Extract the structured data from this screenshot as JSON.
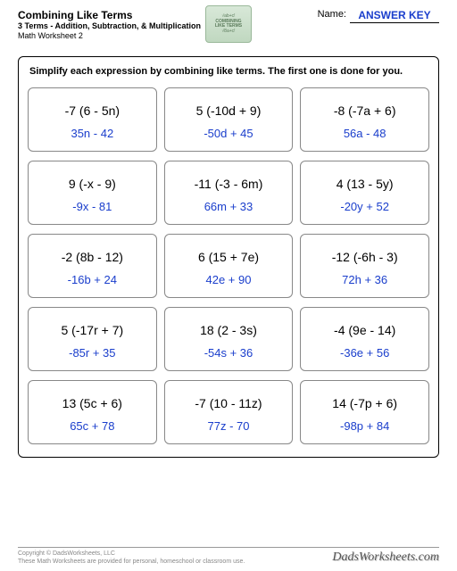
{
  "header": {
    "title": "Combining Like Terms",
    "subtitle": "3 Terms - Addition, Subtraction, & Multiplication",
    "worksheet_num": "Math Worksheet 2",
    "name_label": "Name:",
    "name_value": "ANSWER KEY",
    "logo_line1": "COMBINING",
    "logo_line2": "LIKE TERMS"
  },
  "instructions": "Simplify each expression by combining like terms.  The first one is done for you.",
  "problems": [
    {
      "expr": "-7 (6 - 5n)",
      "answer": "35n - 42"
    },
    {
      "expr": "5 (-10d + 9)",
      "answer": "-50d + 45"
    },
    {
      "expr": "-8 (-7a + 6)",
      "answer": "56a - 48"
    },
    {
      "expr": "9 (-x - 9)",
      "answer": "-9x - 81"
    },
    {
      "expr": "-11 (-3 - 6m)",
      "answer": "66m + 33"
    },
    {
      "expr": "4 (13 - 5y)",
      "answer": "-20y + 52"
    },
    {
      "expr": "-2 (8b - 12)",
      "answer": "-16b + 24"
    },
    {
      "expr": "6 (15 + 7e)",
      "answer": "42e + 90"
    },
    {
      "expr": "-12 (-6h - 3)",
      "answer": "72h + 36"
    },
    {
      "expr": "5 (-17r + 7)",
      "answer": "-85r + 35"
    },
    {
      "expr": "18 (2 - 3s)",
      "answer": "-54s + 36"
    },
    {
      "expr": "-4 (9e - 14)",
      "answer": "-36e + 56"
    },
    {
      "expr": "13 (5c + 6)",
      "answer": "65c + 78"
    },
    {
      "expr": "-7 (10 - 11z)",
      "answer": "77z - 70"
    },
    {
      "expr": "14 (-7p + 6)",
      "answer": "-98p + 84"
    }
  ],
  "footer": {
    "copyright": "Copyright © DadsWorksheets, LLC",
    "usage": "These Math Worksheets are provided for personal, homeschool or classroom use.",
    "brand": "DadsWorksheets.com"
  },
  "colors": {
    "answer_color": "#1a3ecc",
    "text_color": "#000000",
    "border_color": "#888888",
    "footer_color": "#888888"
  }
}
